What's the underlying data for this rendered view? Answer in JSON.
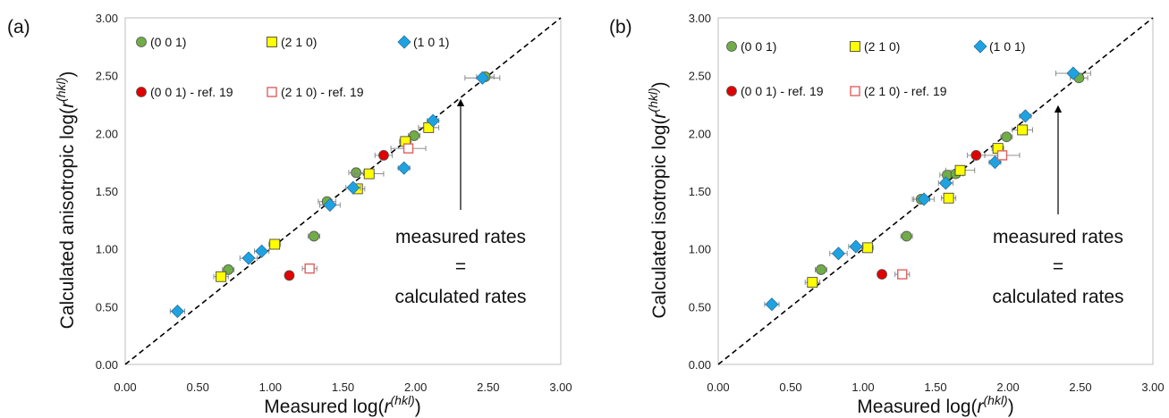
{
  "figure": {
    "colors": {
      "green": "#70ad47",
      "yellow": "#ffff00",
      "blue": "#1fa3e0",
      "red": "#e00000",
      "open_red": "#e06060",
      "errorbar": "#808080"
    }
  },
  "chart_data": [
    {
      "type": "scatter",
      "panel_label": "(a)",
      "xlabel": "Measured log(r(hkl))",
      "ylabel": "Calculated anisotropic log(r(hkl))",
      "ylabel_prefix": "Calculated anisotropic log(",
      "xlim": [
        0,
        3
      ],
      "ylim": [
        0,
        3
      ],
      "xticks": [
        "0.00",
        "0.50",
        "1.00",
        "1.50",
        "2.00",
        "2.50",
        "3.00"
      ],
      "yticks": [
        "0.00",
        "0.50",
        "1.00",
        "1.50",
        "2.00",
        "2.50",
        "3.00"
      ],
      "grid": false,
      "legend_position": "top-left",
      "identity_line": true,
      "annotation": {
        "line1": "measured rates",
        "line2": "=",
        "line3": "calculated rates"
      },
      "series": [
        {
          "name": "(0 0 1)",
          "marker": "circle",
          "color": "green",
          "points": [
            [
              0.71,
              0.82
            ],
            [
              1.3,
              1.11
            ],
            [
              1.39,
              1.41
            ],
            [
              1.59,
              1.66
            ],
            [
              1.99,
              1.98
            ],
            [
              2.48,
              2.49
            ]
          ],
          "xerr": [
            0.04,
            0.04,
            0.06,
            0.05,
            0.04,
            0.06
          ]
        },
        {
          "name": "(2 1 0)",
          "marker": "square",
          "color": "yellow",
          "points": [
            [
              0.66,
              0.76
            ],
            [
              1.03,
              1.04
            ],
            [
              1.6,
              1.52
            ],
            [
              1.68,
              1.65
            ],
            [
              1.93,
              1.93
            ],
            [
              2.09,
              2.05
            ]
          ],
          "xerr": [
            0.05,
            0.04,
            0.05,
            0.1,
            0.04,
            0.07
          ]
        },
        {
          "name": "(1 0 1)",
          "marker": "diamond",
          "color": "blue",
          "points": [
            [
              0.36,
              0.46
            ],
            [
              0.85,
              0.92
            ],
            [
              0.94,
              0.98
            ],
            [
              1.41,
              1.38
            ],
            [
              1.57,
              1.53
            ],
            [
              1.92,
              1.7
            ],
            [
              2.12,
              2.11
            ],
            [
              2.46,
              2.48
            ]
          ],
          "xerr": [
            0.05,
            0.06,
            0.05,
            0.07,
            0.05,
            0.04,
            0.04,
            0.12
          ]
        },
        {
          "name": "(0 0 1) - ref. 19",
          "marker": "circle",
          "color": "red",
          "points": [
            [
              1.13,
              0.77
            ],
            [
              1.78,
              1.81
            ]
          ],
          "xerr": [
            0.0,
            0.06
          ]
        },
        {
          "name": "(2 1 0) - ref. 19",
          "marker": "open-square",
          "color": "open_red",
          "points": [
            [
              1.27,
              0.83
            ],
            [
              1.95,
              1.87
            ]
          ],
          "xerr": [
            0.05,
            0.12
          ]
        }
      ]
    },
    {
      "type": "scatter",
      "panel_label": "(b)",
      "xlabel": "Measured log(r(hkl))",
      "ylabel": "Calculated isotropic log(r(hkl))",
      "ylabel_prefix": "Calculated isotropic log(",
      "xlim": [
        0,
        3
      ],
      "ylim": [
        0,
        3
      ],
      "xticks": [
        "0.00",
        "0.50",
        "1.00",
        "1.50",
        "2.00",
        "2.50",
        "3.00"
      ],
      "yticks": [
        "0.00",
        "0.50",
        "1.00",
        "1.50",
        "2.00",
        "2.50",
        "3.00"
      ],
      "grid": false,
      "legend_position": "top-left",
      "identity_line": true,
      "annotation": {
        "line1": "measured rates",
        "line2": "=",
        "line3": "calculated rates"
      },
      "series": [
        {
          "name": "(0 0 1)",
          "marker": "circle",
          "color": "green",
          "points": [
            [
              0.71,
              0.82
            ],
            [
              1.3,
              1.11
            ],
            [
              1.4,
              1.43
            ],
            [
              1.58,
              1.64
            ],
            [
              1.64,
              1.65
            ],
            [
              1.99,
              1.97
            ],
            [
              2.49,
              2.48
            ]
          ],
          "xerr": [
            0.04,
            0.04,
            0.06,
            0.05,
            0.05,
            0.04,
            0.06
          ]
        },
        {
          "name": "(2 1 0)",
          "marker": "square",
          "color": "yellow",
          "points": [
            [
              0.65,
              0.71
            ],
            [
              1.03,
              1.01
            ],
            [
              1.59,
              1.44
            ],
            [
              1.67,
              1.68
            ],
            [
              1.93,
              1.87
            ],
            [
              2.1,
              2.03
            ]
          ],
          "xerr": [
            0.05,
            0.04,
            0.05,
            0.1,
            0.04,
            0.07
          ]
        },
        {
          "name": "(1 0 1)",
          "marker": "diamond",
          "color": "blue",
          "points": [
            [
              0.37,
              0.52
            ],
            [
              0.83,
              0.96
            ],
            [
              0.95,
              1.02
            ],
            [
              1.42,
              1.43
            ],
            [
              1.57,
              1.57
            ],
            [
              1.91,
              1.75
            ],
            [
              2.12,
              2.15
            ],
            [
              2.45,
              2.52
            ]
          ],
          "xerr": [
            0.05,
            0.06,
            0.05,
            0.07,
            0.05,
            0.04,
            0.04,
            0.12
          ]
        },
        {
          "name": "(0 0 1) - ref. 19",
          "marker": "circle",
          "color": "red",
          "points": [
            [
              1.13,
              0.78
            ],
            [
              1.78,
              1.81
            ]
          ],
          "xerr": [
            0.0,
            0.06
          ]
        },
        {
          "name": "(2 1 0) - ref. 19",
          "marker": "open-square",
          "color": "open_red",
          "points": [
            [
              1.27,
              0.78
            ],
            [
              1.96,
              1.81
            ]
          ],
          "xerr": [
            0.05,
            0.12
          ]
        }
      ]
    }
  ]
}
